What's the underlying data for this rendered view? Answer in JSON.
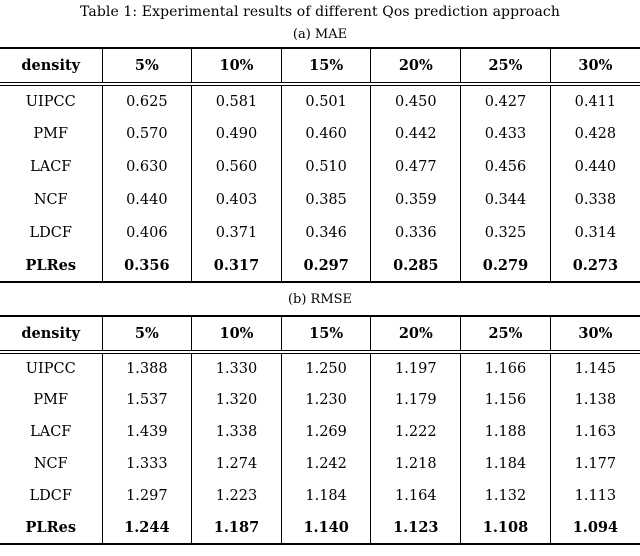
{
  "page": {
    "title": "Table 1: Experimental results of different Qos prediction approach"
  },
  "colors": {
    "background": "#ffffff",
    "text": "#000000",
    "rule": "#000000"
  },
  "tables": [
    {
      "caption": "(a) MAE",
      "header": [
        "density",
        "5%",
        "10%",
        "15%",
        "20%",
        "25%",
        "30%"
      ],
      "rows": [
        {
          "label": "UIPCC",
          "emphasized": false,
          "values": [
            "0.625",
            "0.581",
            "0.501",
            "0.450",
            "0.427",
            "0.411"
          ]
        },
        {
          "label": "PMF",
          "emphasized": false,
          "values": [
            "0.570",
            "0.490",
            "0.460",
            "0.442",
            "0.433",
            "0.428"
          ]
        },
        {
          "label": "LACF",
          "emphasized": false,
          "values": [
            "0.630",
            "0.560",
            "0.510",
            "0.477",
            "0.456",
            "0.440"
          ]
        },
        {
          "label": "NCF",
          "emphasized": false,
          "values": [
            "0.440",
            "0.403",
            "0.385",
            "0.359",
            "0.344",
            "0.338"
          ]
        },
        {
          "label": "LDCF",
          "emphasized": false,
          "values": [
            "0.406",
            "0.371",
            "0.346",
            "0.336",
            "0.325",
            "0.314"
          ]
        },
        {
          "label": "PLRes",
          "emphasized": true,
          "values": [
            "0.356",
            "0.317",
            "0.297",
            "0.285",
            "0.279",
            "0.273"
          ]
        }
      ]
    },
    {
      "caption": "(b) RMSE",
      "header": [
        "density",
        "5%",
        "10%",
        "15%",
        "20%",
        "25%",
        "30%"
      ],
      "rows": [
        {
          "label": "UIPCC",
          "emphasized": false,
          "values": [
            "1.388",
            "1.330",
            "1.250",
            "1.197",
            "1.166",
            "1.145"
          ]
        },
        {
          "label": "PMF",
          "emphasized": false,
          "values": [
            "1.537",
            "1.320",
            "1.230",
            "1.179",
            "1.156",
            "1.138"
          ]
        },
        {
          "label": "LACF",
          "emphasized": false,
          "values": [
            "1.439",
            "1.338",
            "1.269",
            "1.222",
            "1.188",
            "1.163"
          ]
        },
        {
          "label": "NCF",
          "emphasized": false,
          "values": [
            "1.333",
            "1.274",
            "1.242",
            "1.218",
            "1.184",
            "1.177"
          ]
        },
        {
          "label": "LDCF",
          "emphasized": false,
          "values": [
            "1.297",
            "1.223",
            "1.184",
            "1.164",
            "1.132",
            "1.113"
          ]
        },
        {
          "label": "PLRes",
          "emphasized": true,
          "values": [
            "1.244",
            "1.187",
            "1.140",
            "1.123",
            "1.108",
            "1.094"
          ]
        }
      ]
    }
  ]
}
